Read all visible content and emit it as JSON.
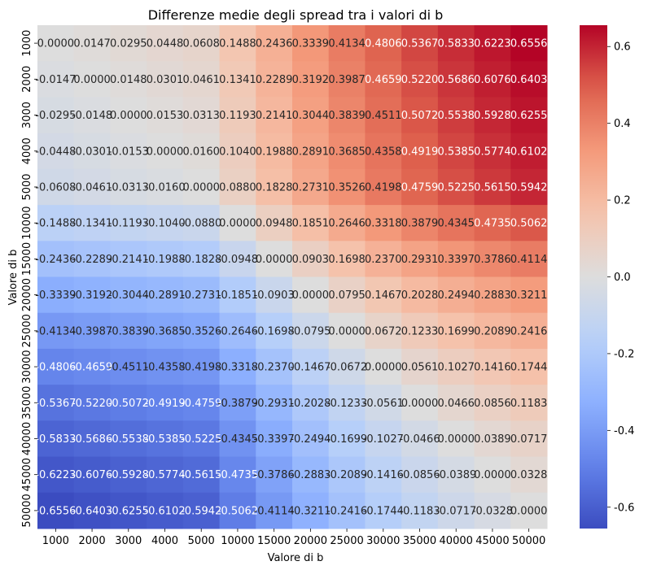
{
  "chart_data": {
    "type": "heatmap",
    "title": "Differenze medie degli spread tra i valori di b",
    "xlabel": "Valore di b",
    "ylabel": "Valore di b",
    "x_categories": [
      "1000",
      "2000",
      "3000",
      "4000",
      "5000",
      "10000",
      "15000",
      "20000",
      "25000",
      "30000",
      "35000",
      "40000",
      "45000",
      "50000"
    ],
    "y_categories": [
      "1000",
      "2000",
      "3000",
      "4000",
      "5000",
      "10000",
      "15000",
      "20000",
      "25000",
      "30000",
      "35000",
      "40000",
      "45000",
      "50000"
    ],
    "values": [
      [
        0.0,
        0.0147,
        0.0295,
        0.0448,
        0.0608,
        0.1488,
        0.2436,
        0.3339,
        0.4134,
        0.4806,
        0.5367,
        0.5833,
        0.6223,
        0.6556
      ],
      [
        -0.0147,
        0.0,
        0.0148,
        0.0301,
        0.0461,
        0.1341,
        0.2289,
        0.3192,
        0.3987,
        0.4659,
        0.522,
        0.5686,
        0.6076,
        0.6403
      ],
      [
        -0.0295,
        -0.0148,
        0.0,
        0.0153,
        0.0313,
        0.1193,
        0.2141,
        0.3044,
        0.3839,
        0.4511,
        0.5072,
        0.5538,
        0.5928,
        0.6255
      ],
      [
        -0.0448,
        -0.0301,
        -0.0153,
        0.0,
        0.016,
        0.104,
        0.1988,
        0.2891,
        0.3685,
        0.4358,
        0.4919,
        0.5385,
        0.5774,
        0.6102
      ],
      [
        -0.0608,
        -0.0461,
        -0.0313,
        -0.016,
        0.0,
        0.088,
        0.1828,
        0.2731,
        0.3526,
        0.4198,
        0.4759,
        0.5225,
        0.5615,
        0.5942
      ],
      [
        -0.1488,
        -0.1341,
        -0.1193,
        -0.104,
        -0.088,
        0.0,
        0.0948,
        0.1851,
        0.2646,
        0.3318,
        0.3879,
        0.4345,
        0.4735,
        0.5062
      ],
      [
        -0.2436,
        -0.2289,
        -0.2141,
        -0.1988,
        -0.1828,
        -0.0948,
        0.0,
        0.0903,
        0.1698,
        0.237,
        0.2931,
        0.3397,
        0.3786,
        0.4114
      ],
      [
        -0.3339,
        -0.3192,
        -0.3044,
        -0.2891,
        -0.2731,
        -0.1851,
        -0.0903,
        0.0,
        0.0795,
        0.1467,
        0.2028,
        0.2494,
        0.2883,
        0.3211
      ],
      [
        -0.4134,
        -0.3987,
        -0.3839,
        -0.3685,
        -0.3526,
        -0.2646,
        -0.1698,
        -0.0795,
        0.0,
        0.0672,
        0.1233,
        0.1699,
        0.2089,
        0.2416
      ],
      [
        -0.4806,
        -0.4659,
        -0.4511,
        -0.4358,
        -0.4198,
        -0.3318,
        -0.237,
        -0.1467,
        -0.0672,
        0.0,
        0.0561,
        0.1027,
        0.1416,
        0.1744
      ],
      [
        -0.5367,
        -0.522,
        -0.5072,
        -0.4919,
        -0.4759,
        -0.3879,
        -0.2931,
        -0.2028,
        -0.1233,
        -0.0561,
        0.0,
        0.0466,
        0.0856,
        0.1183
      ],
      [
        -0.5833,
        -0.5686,
        -0.5538,
        -0.5385,
        -0.5225,
        -0.4345,
        -0.3397,
        -0.2494,
        -0.1699,
        -0.1027,
        -0.0466,
        0.0,
        0.0389,
        0.0717
      ],
      [
        -0.6223,
        -0.6076,
        -0.5928,
        -0.5774,
        -0.5615,
        -0.4735,
        -0.3786,
        -0.2883,
        -0.2089,
        -0.1416,
        -0.0856,
        -0.0389,
        0.0,
        0.0328
      ],
      [
        -0.6556,
        -0.6403,
        -0.6255,
        -0.6102,
        -0.5942,
        -0.5062,
        -0.4114,
        -0.3211,
        -0.2416,
        -0.1744,
        -0.1183,
        -0.0717,
        -0.0328,
        0.0
      ]
    ],
    "colormap": "coolwarm",
    "vmin": -0.6556,
    "vmax": 0.6556,
    "colorbar_ticks": [
      "-0.6",
      "-0.4",
      "-0.2",
      "0.0",
      "0.2",
      "0.4",
      "0.6"
    ],
    "colorbar_tick_values": [
      -0.6,
      -0.4,
      -0.2,
      0.0,
      0.2,
      0.4,
      0.6
    ],
    "value_format": "4 decimals"
  }
}
